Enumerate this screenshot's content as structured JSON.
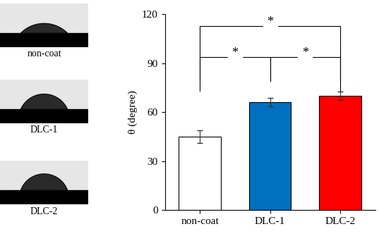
{
  "chart_data": {
    "type": "bar",
    "y_label": "θ (degree)",
    "categories": [
      "non-coat",
      "DLC-1",
      "DLC-2"
    ],
    "values": [
      45,
      66,
      70
    ],
    "errors": [
      4,
      2.5,
      2.5
    ],
    "colors": [
      "#ffffff",
      "#0070c0",
      "#ff0000"
    ],
    "ylim": [
      0,
      120
    ],
    "yticks": [
      0,
      30,
      60,
      90,
      120
    ],
    "significance": [
      {
        "pair": [
          0,
          1
        ],
        "label": "*"
      },
      {
        "pair": [
          1,
          2
        ],
        "label": "*"
      },
      {
        "pair": [
          0,
          2
        ],
        "label": "*"
      }
    ],
    "image_labels": [
      "non-coat",
      "DLC-1",
      "DLC-2"
    ]
  }
}
